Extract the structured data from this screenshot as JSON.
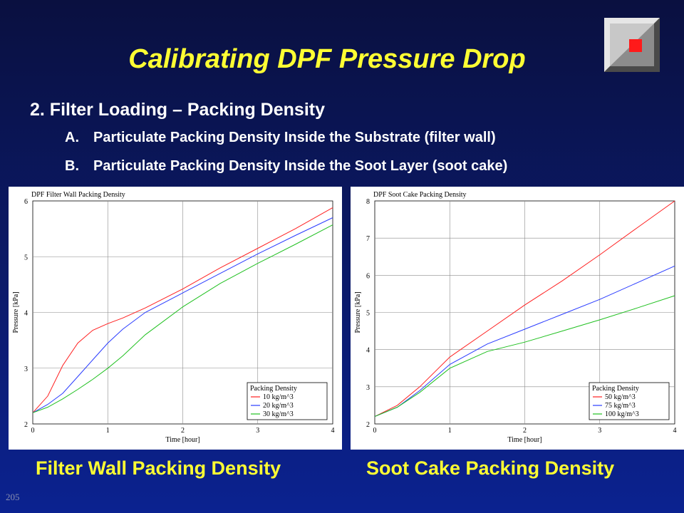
{
  "slide": {
    "title": "Calibrating DPF Pressure Drop",
    "heading": "2. Filter Loading – Packing Density",
    "items": [
      {
        "label": "A.",
        "text": "Particulate Packing Density Inside the Substrate (filter wall)"
      },
      {
        "label": "B.",
        "text": "Particulate Packing Density Inside the Soot Layer (soot cake)"
      }
    ],
    "captions": [
      "Filter Wall Packing Density",
      "Soot Cake Packing Density"
    ],
    "page_number": "205",
    "colors": {
      "background": "#0b1a6a",
      "title": "#ffff33",
      "text": "#ffffff"
    }
  },
  "chart_data": [
    {
      "type": "line",
      "title": "DPF Filter Wall Packing Density",
      "xlabel": "Time [hour]",
      "ylabel": "Pressure [kPa]",
      "xlim": [
        0,
        4
      ],
      "ylim": [
        2,
        6
      ],
      "xticks": [
        "0",
        "1",
        "2",
        "3",
        "4"
      ],
      "yticks": [
        "2",
        "3",
        "4",
        "5",
        "6"
      ],
      "grid": true,
      "legend_title": "Packing Density",
      "legend_position": "bottom-right",
      "series": [
        {
          "name": "10 kg/m^3",
          "color": "#ff2020",
          "x": [
            0,
            0.2,
            0.4,
            0.6,
            0.8,
            1.0,
            1.2,
            1.5,
            2.0,
            2.5,
            3.0,
            3.5,
            4.0
          ],
          "y": [
            2.2,
            2.5,
            3.05,
            3.45,
            3.68,
            3.8,
            3.9,
            4.08,
            4.42,
            4.8,
            5.15,
            5.5,
            5.88
          ]
        },
        {
          "name": "20 kg/m^3",
          "color": "#2a3cff",
          "x": [
            0,
            0.2,
            0.4,
            0.6,
            0.8,
            1.0,
            1.2,
            1.5,
            2.0,
            2.5,
            3.0,
            3.5,
            4.0
          ],
          "y": [
            2.2,
            2.35,
            2.55,
            2.85,
            3.15,
            3.45,
            3.7,
            4.0,
            4.35,
            4.7,
            5.05,
            5.38,
            5.7
          ]
        },
        {
          "name": "30 kg/m^3",
          "color": "#20c020",
          "x": [
            0,
            0.2,
            0.4,
            0.6,
            0.8,
            1.0,
            1.2,
            1.5,
            2.0,
            2.5,
            3.0,
            3.5,
            4.0
          ],
          "y": [
            2.2,
            2.3,
            2.45,
            2.62,
            2.8,
            3.0,
            3.22,
            3.6,
            4.1,
            4.52,
            4.88,
            5.22,
            5.57
          ]
        }
      ]
    },
    {
      "type": "line",
      "title": "DPF Soot Cake  Packing Density",
      "xlabel": "Time [hour]",
      "ylabel": "Pressure [kPa]",
      "xlim": [
        0,
        4
      ],
      "ylim": [
        2,
        8
      ],
      "xticks": [
        "0",
        "1",
        "2",
        "3",
        "4"
      ],
      "yticks": [
        "2",
        "3",
        "4",
        "5",
        "6",
        "7",
        "8"
      ],
      "grid": true,
      "legend_title": "Packing Density",
      "legend_position": "bottom-right",
      "series": [
        {
          "name": "50 kg/m^3",
          "color": "#ff2020",
          "x": [
            0,
            0.3,
            0.6,
            1.0,
            1.5,
            2.0,
            2.5,
            3.0,
            3.5,
            4.0
          ],
          "y": [
            2.2,
            2.5,
            3.0,
            3.8,
            4.5,
            5.2,
            5.85,
            6.55,
            7.28,
            8.0
          ]
        },
        {
          "name": "75 kg/m^3",
          "color": "#2a3cff",
          "x": [
            0,
            0.3,
            0.6,
            1.0,
            1.5,
            2.0,
            2.5,
            3.0,
            3.5,
            4.0
          ],
          "y": [
            2.2,
            2.45,
            2.9,
            3.6,
            4.15,
            4.55,
            4.95,
            5.35,
            5.8,
            6.25
          ]
        },
        {
          "name": "100 kg/m^3",
          "color": "#20c020",
          "x": [
            0,
            0.3,
            0.6,
            1.0,
            1.5,
            2.0,
            2.5,
            3.0,
            3.5,
            4.0
          ],
          "y": [
            2.2,
            2.45,
            2.85,
            3.5,
            3.95,
            4.2,
            4.5,
            4.8,
            5.12,
            5.45
          ]
        }
      ]
    }
  ]
}
